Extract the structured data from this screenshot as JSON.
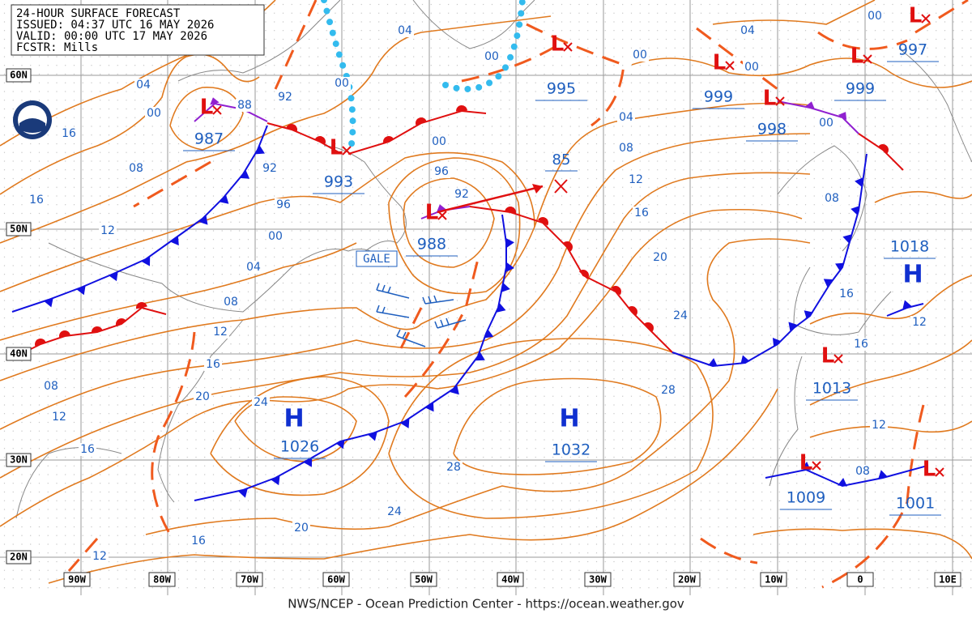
{
  "header": {
    "title": "24-HOUR SURFACE FORECAST",
    "issued": "ISSUED: 04:37 UTC 16 MAY 2026",
    "valid": "VALID: 00:00 UTC 17 MAY 2026",
    "forecaster": "FCSTR: Mills"
  },
  "latitude_labels": [
    "60N",
    "50N",
    "40N",
    "30N",
    "20N"
  ],
  "longitude_labels": [
    "90W",
    "80W",
    "70W",
    "60W",
    "50W",
    "40W",
    "30W",
    "20W",
    "10W",
    "0",
    "10E"
  ],
  "pressure_centers": [
    {
      "symbol": "L",
      "value": "987"
    },
    {
      "symbol": "L",
      "value": "993"
    },
    {
      "symbol": "L",
      "value": "988"
    },
    {
      "symbol": "L",
      "value": "995"
    },
    {
      "symbol": "L",
      "value": "999"
    },
    {
      "symbol": "L",
      "value": "998"
    },
    {
      "symbol": "L",
      "value": "999"
    },
    {
      "symbol": "L",
      "value": "997"
    },
    {
      "symbol": "H",
      "value": "1018"
    },
    {
      "symbol": "L",
      "value": "1013"
    },
    {
      "symbol": "H",
      "value": "1026"
    },
    {
      "symbol": "H",
      "value": "1032"
    },
    {
      "symbol": "L",
      "value": "1009"
    },
    {
      "symbol": "L",
      "value": "1001"
    }
  ],
  "forecast_position": "85",
  "warning": "GALE",
  "isobar_labels": [
    "04",
    "04",
    "00",
    "00",
    "00",
    "00",
    "04",
    "00",
    "88",
    "92",
    "00",
    "16",
    "08",
    "92",
    "96",
    "00",
    "96",
    "92",
    "04",
    "08",
    "00",
    "12",
    "16",
    "08",
    "16",
    "12",
    "00",
    "04",
    "20",
    "08",
    "24",
    "16",
    "12",
    "12",
    "16",
    "16",
    "08",
    "20",
    "24",
    "28",
    "12",
    "12",
    "16",
    "28",
    "08",
    "24",
    "20",
    "16",
    "12"
  ],
  "footer": "NWS/NCEP - Ocean Prediction Center - https://ocean.weather.gov"
}
